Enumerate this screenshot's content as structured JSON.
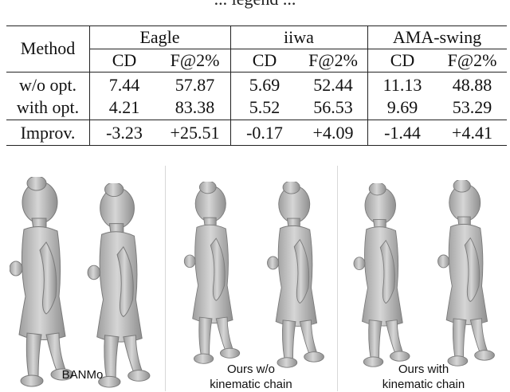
{
  "caption_top": "... legend ...",
  "table": {
    "header_method": "Method",
    "groups": [
      "Eagle",
      "iiwa",
      "AMA-swing"
    ],
    "metrics": [
      "CD",
      "F@2%"
    ],
    "rows": [
      {
        "label": "w/o opt.",
        "values": [
          "7.44",
          "57.87",
          "5.69",
          "52.44",
          "11.13",
          "48.88"
        ]
      },
      {
        "label": "with opt.",
        "values": [
          "4.21",
          "83.38",
          "5.52",
          "56.53",
          "9.69",
          "53.29"
        ]
      },
      {
        "label": "Improv.",
        "values": [
          "-3.23",
          "+25.51",
          "-0.17",
          "+4.09",
          "-1.44",
          "+4.41"
        ]
      }
    ]
  },
  "figure": {
    "panels": [
      {
        "caption_lines": [
          "BANMo"
        ]
      },
      {
        "caption_lines": [
          "Ours w/o",
          "kinematic chain"
        ]
      },
      {
        "caption_lines": [
          "Ours with",
          "kinematic chain"
        ]
      }
    ],
    "mesh_color": "#bdbdbd"
  }
}
